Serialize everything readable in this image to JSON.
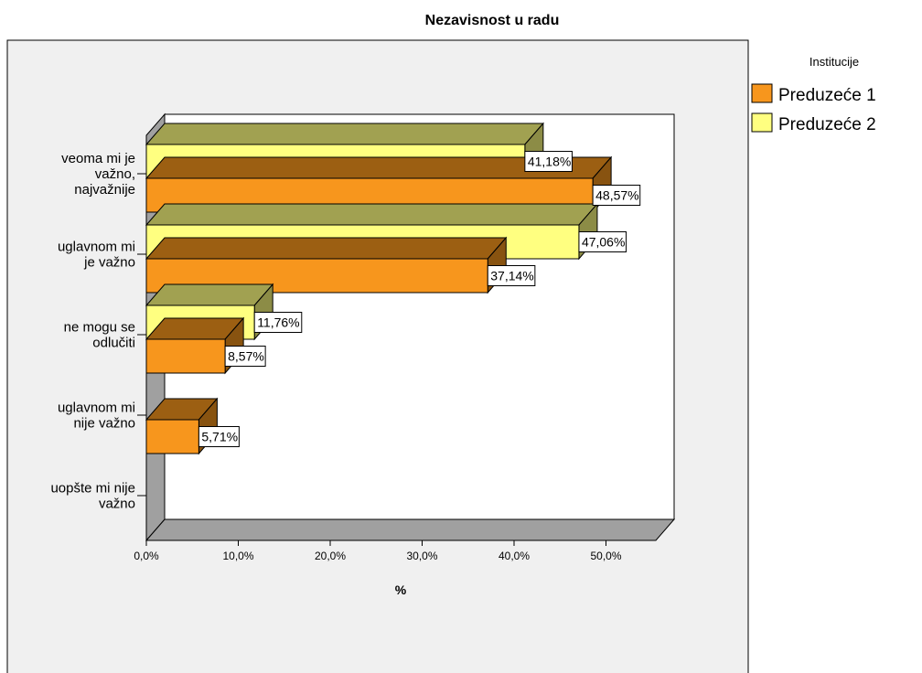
{
  "chart_data": {
    "type": "bar",
    "orientation": "horizontal",
    "title": "Nezavisnost u radu",
    "xlabel": "%",
    "xlim": [
      0,
      55
    ],
    "x_ticks": [
      "0,0%",
      "10,0%",
      "20,0%",
      "30,0%",
      "40,0%",
      "50,0%"
    ],
    "grid": false,
    "legend_placement": "right",
    "legend_title": "Institucije",
    "categories": [
      "veoma mi je važno, najvažnije",
      "uglavnom mi je važno",
      "ne mogu se odlučiti",
      "uglavnom mi nije važno",
      "uopšte mi nije važno"
    ],
    "category_lines": [
      [
        "veoma mi je",
        "važno,",
        "najvažnije"
      ],
      [
        "uglavnom mi",
        "je važno"
      ],
      [
        "ne mogu se",
        "odlučiti"
      ],
      [
        "uglavnom mi",
        "nije važno"
      ],
      [
        "uopšte mi nije",
        "važno"
      ]
    ],
    "series": [
      {
        "name": "Preduzeće 1",
        "color": "#F7961D",
        "values": [
          48.57,
          37.14,
          8.57,
          5.71,
          null
        ],
        "labels": [
          "48,57%",
          "37,14%",
          "8,57%",
          "5,71%",
          ""
        ]
      },
      {
        "name": "Preduzeće 2",
        "color": "#FFFF80",
        "values": [
          41.18,
          47.06,
          11.76,
          null,
          null
        ],
        "labels": [
          "41,18%",
          "47,06%",
          "11,76%",
          "",
          ""
        ]
      }
    ],
    "colors": {
      "wall_back": "#ffffff",
      "wall_side": "#a0a0a0",
      "floor": "#a0a0a0",
      "plot_bg": "#f0f0f0"
    }
  }
}
